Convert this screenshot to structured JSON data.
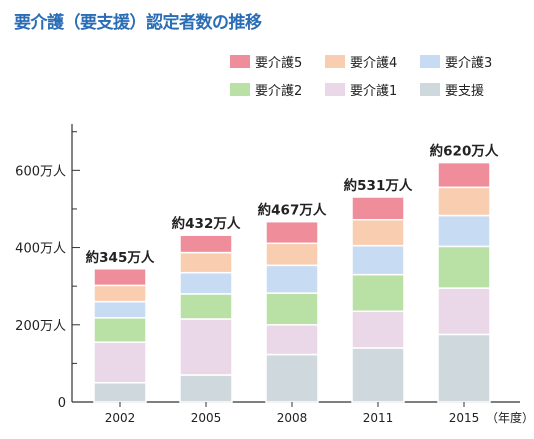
{
  "title": "要介護（要支援）認定者数の推移",
  "colors": {
    "title": "#2a6db5",
    "要支援": "#cfd8dc",
    "要介護1": "#ead7e8",
    "要介護2": "#b9e0a5",
    "要介護3": "#c7dbf3",
    "要介護4": "#f8cdb0",
    "要介護5": "#ef8d9a"
  },
  "legend": [
    {
      "label": "要介護5",
      "key": "要介護5"
    },
    {
      "label": "要介護4",
      "key": "要介護4"
    },
    {
      "label": "要介護3",
      "key": "要介護3"
    },
    {
      "label": "要介護2",
      "key": "要介護2"
    },
    {
      "label": "要介護1",
      "key": "要介護1"
    },
    {
      "label": "要支援",
      "key": "要支援"
    }
  ],
  "chart_data": {
    "type": "bar",
    "stacked": true,
    "categories": [
      "2002",
      "2005",
      "2008",
      "2011",
      "2015"
    ],
    "x_unit": "（年度）",
    "y_tick_labels": [
      "0",
      "200万人",
      "400万人",
      "600万人"
    ],
    "y_tick_values": [
      0,
      200,
      400,
      600
    ],
    "ylim": [
      0,
      720
    ],
    "series": [
      {
        "name": "要支援",
        "values": [
          50,
          70,
          123,
          140,
          175
        ]
      },
      {
        "name": "要介護1",
        "values": [
          105,
          145,
          77,
          95,
          120
        ]
      },
      {
        "name": "要介護2",
        "values": [
          63,
          65,
          82,
          95,
          108
        ]
      },
      {
        "name": "要介護3",
        "values": [
          42,
          55,
          72,
          75,
          80
        ]
      },
      {
        "name": "要介護4",
        "values": [
          42,
          52,
          57,
          67,
          73
        ]
      },
      {
        "name": "要介護5",
        "values": [
          43,
          45,
          56,
          59,
          64
        ]
      }
    ],
    "totals": [
      345,
      432,
      467,
      531,
      620
    ],
    "total_labels": [
      "約345万人",
      "約432万人",
      "約467万人",
      "約531万人",
      "約620万人"
    ]
  }
}
